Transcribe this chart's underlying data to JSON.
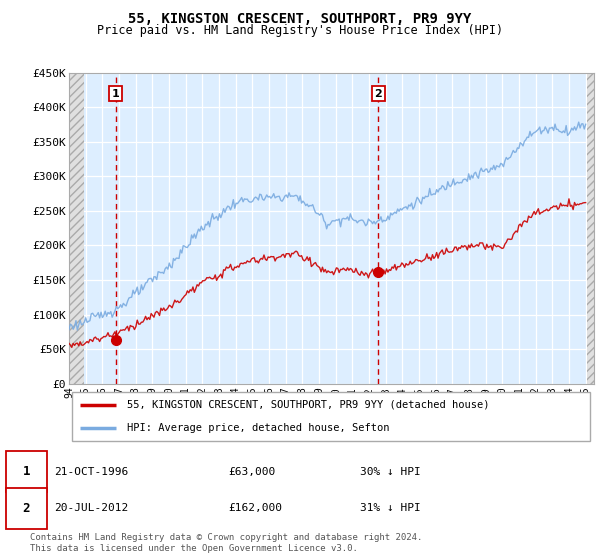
{
  "title": "55, KINGSTON CRESCENT, SOUTHPORT, PR9 9YY",
  "subtitle": "Price paid vs. HM Land Registry's House Price Index (HPI)",
  "ylabel_ticks": [
    "£0",
    "£50K",
    "£100K",
    "£150K",
    "£200K",
    "£250K",
    "£300K",
    "£350K",
    "£400K",
    "£450K"
  ],
  "ylim": [
    0,
    450000
  ],
  "xlim_start": 1994.0,
  "xlim_end": 2025.5,
  "legend_line1": "55, KINGSTON CRESCENT, SOUTHPORT, PR9 9YY (detached house)",
  "legend_line2": "HPI: Average price, detached house, Sefton",
  "sale1_date": "21-OCT-1996",
  "sale1_price": "£63,000",
  "sale1_hpi": "30% ↓ HPI",
  "sale2_date": "20-JUL-2012",
  "sale2_price": "£162,000",
  "sale2_hpi": "31% ↓ HPI",
  "footer": "Contains HM Land Registry data © Crown copyright and database right 2024.\nThis data is licensed under the Open Government Licence v3.0.",
  "sale1_x": 1996.8,
  "sale1_y": 63000,
  "sale2_x": 2012.55,
  "sale2_y": 162000,
  "vline1_x": 1996.8,
  "vline2_x": 2012.55,
  "hpi_color": "#7aabe0",
  "price_color": "#cc0000",
  "vline_color": "#cc0000",
  "plot_bg_color": "#ddeeff",
  "hatch_color": "#cccccc"
}
